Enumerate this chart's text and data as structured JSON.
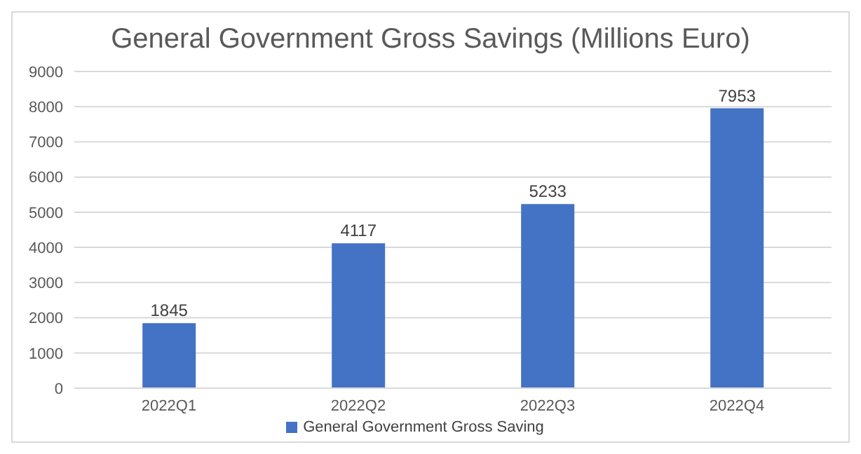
{
  "chart_data": {
    "type": "bar",
    "title": "General Government Gross Savings (Millions Euro)",
    "categories": [
      "2022Q1",
      "2022Q2",
      "2022Q3",
      "2022Q4"
    ],
    "series": [
      {
        "name": "General Government Gross Saving",
        "color": "#4472c4",
        "values": [
          1845,
          4117,
          5233,
          7953
        ]
      }
    ],
    "ylim": [
      0,
      9000
    ],
    "yticks": [
      0,
      1000,
      2000,
      3000,
      4000,
      5000,
      6000,
      7000,
      8000,
      9000
    ],
    "grid": "y",
    "legend": "bottom",
    "data_labels": true
  }
}
